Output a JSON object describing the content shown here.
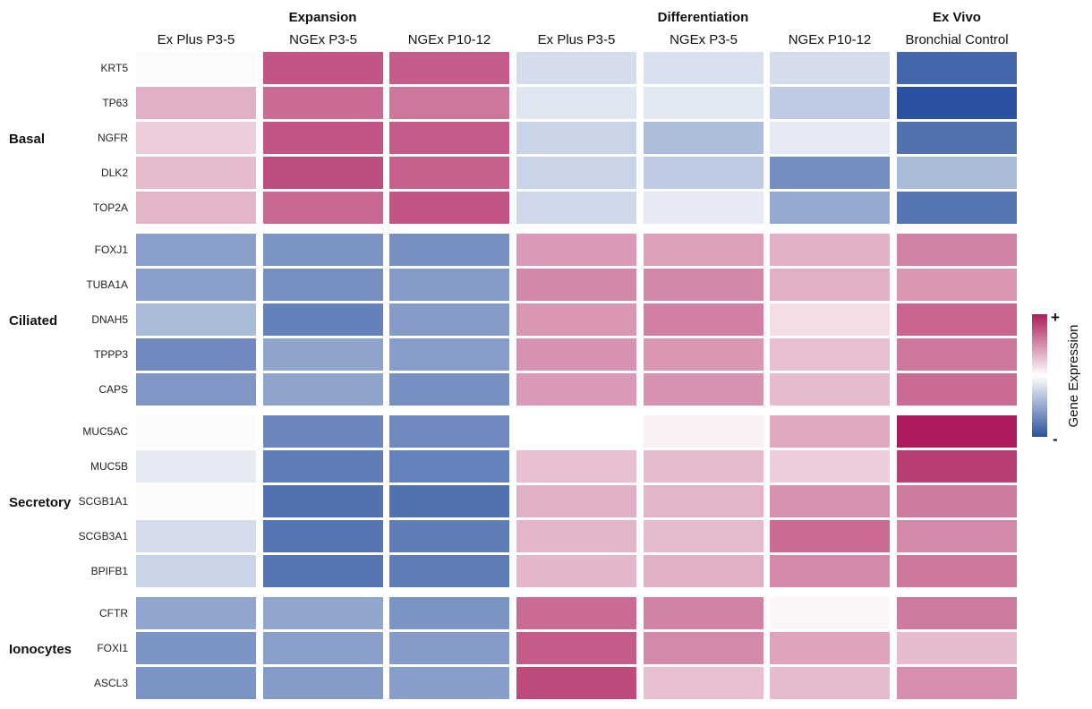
{
  "chart_data": {
    "type": "heatmap",
    "title": "",
    "group_headers": [
      "Expansion",
      "Differentiation",
      "Ex Vivo"
    ],
    "columns": [
      "Ex Plus P3-5",
      "NGEx P3-5",
      "NGEx P10-12",
      "Ex Plus P3-5",
      "NGEx P3-5",
      "NGEx P10-12",
      "Bronchial Control"
    ],
    "column_groups": [
      0,
      0,
      0,
      1,
      1,
      1,
      2
    ],
    "row_groups": [
      {
        "label": "Basal",
        "genes": [
          "KRT5",
          "TP63",
          "NGFR",
          "DLK2",
          "TOP2A"
        ]
      },
      {
        "label": "Ciliated",
        "genes": [
          "FOXJ1",
          "TUBA1A",
          "DNAH5",
          "TPPP3",
          "CAPS"
        ]
      },
      {
        "label": "Secretory",
        "genes": [
          "MUC5AC",
          "MUC5B",
          "SCGB1A1",
          "SCGB3A1",
          "BPIFB1"
        ]
      },
      {
        "label": "Ionocytes",
        "genes": [
          "CFTR",
          "FOXI1",
          "ASCL3"
        ]
      }
    ],
    "values": [
      [
        0.02,
        0.75,
        0.72,
        -0.2,
        -0.18,
        -0.2,
        -0.88
      ],
      [
        0.35,
        0.65,
        0.6,
        -0.15,
        -0.13,
        -0.3,
        -1.0
      ],
      [
        0.22,
        0.75,
        0.72,
        -0.25,
        -0.38,
        -0.12,
        -0.82
      ],
      [
        0.3,
        0.78,
        0.7,
        -0.25,
        -0.3,
        -0.66,
        -0.4
      ],
      [
        0.33,
        0.66,
        0.75,
        -0.22,
        -0.12,
        -0.5,
        -0.8
      ],
      [
        -0.55,
        -0.62,
        -0.64,
        0.45,
        0.42,
        0.35,
        0.55
      ],
      [
        -0.55,
        -0.64,
        -0.58,
        0.53,
        0.53,
        0.35,
        0.46
      ],
      [
        -0.4,
        -0.73,
        -0.58,
        0.46,
        0.56,
        0.15,
        0.68
      ],
      [
        -0.68,
        -0.53,
        -0.56,
        0.48,
        0.46,
        0.28,
        0.6
      ],
      [
        -0.6,
        -0.53,
        -0.64,
        0.45,
        0.48,
        0.3,
        0.65
      ],
      [
        0.02,
        -0.7,
        -0.68,
        0.0,
        0.06,
        0.38,
        1.0
      ],
      [
        -0.12,
        -0.75,
        -0.72,
        0.28,
        0.3,
        0.22,
        0.85
      ],
      [
        0.02,
        -0.82,
        -0.82,
        0.35,
        0.33,
        0.48,
        0.58
      ],
      [
        -0.2,
        -0.8,
        -0.75,
        0.33,
        0.3,
        0.65,
        0.52
      ],
      [
        -0.25,
        -0.8,
        -0.75,
        0.32,
        0.35,
        0.52,
        0.6
      ],
      [
        -0.52,
        -0.52,
        -0.62,
        0.65,
        0.55,
        0.04,
        0.58
      ],
      [
        -0.62,
        -0.55,
        -0.58,
        0.72,
        0.52,
        0.4,
        0.3
      ],
      [
        -0.62,
        -0.58,
        -0.56,
        0.8,
        0.28,
        0.3,
        0.5
      ]
    ],
    "value_range": [
      -1,
      1
    ],
    "colorbar": {
      "label": "Gene Expression",
      "max_label": "+",
      "min_label": "-",
      "colors": {
        "high": "#ac1c5c",
        "mid": "#ffffff",
        "low": "#2b52a0"
      }
    }
  }
}
